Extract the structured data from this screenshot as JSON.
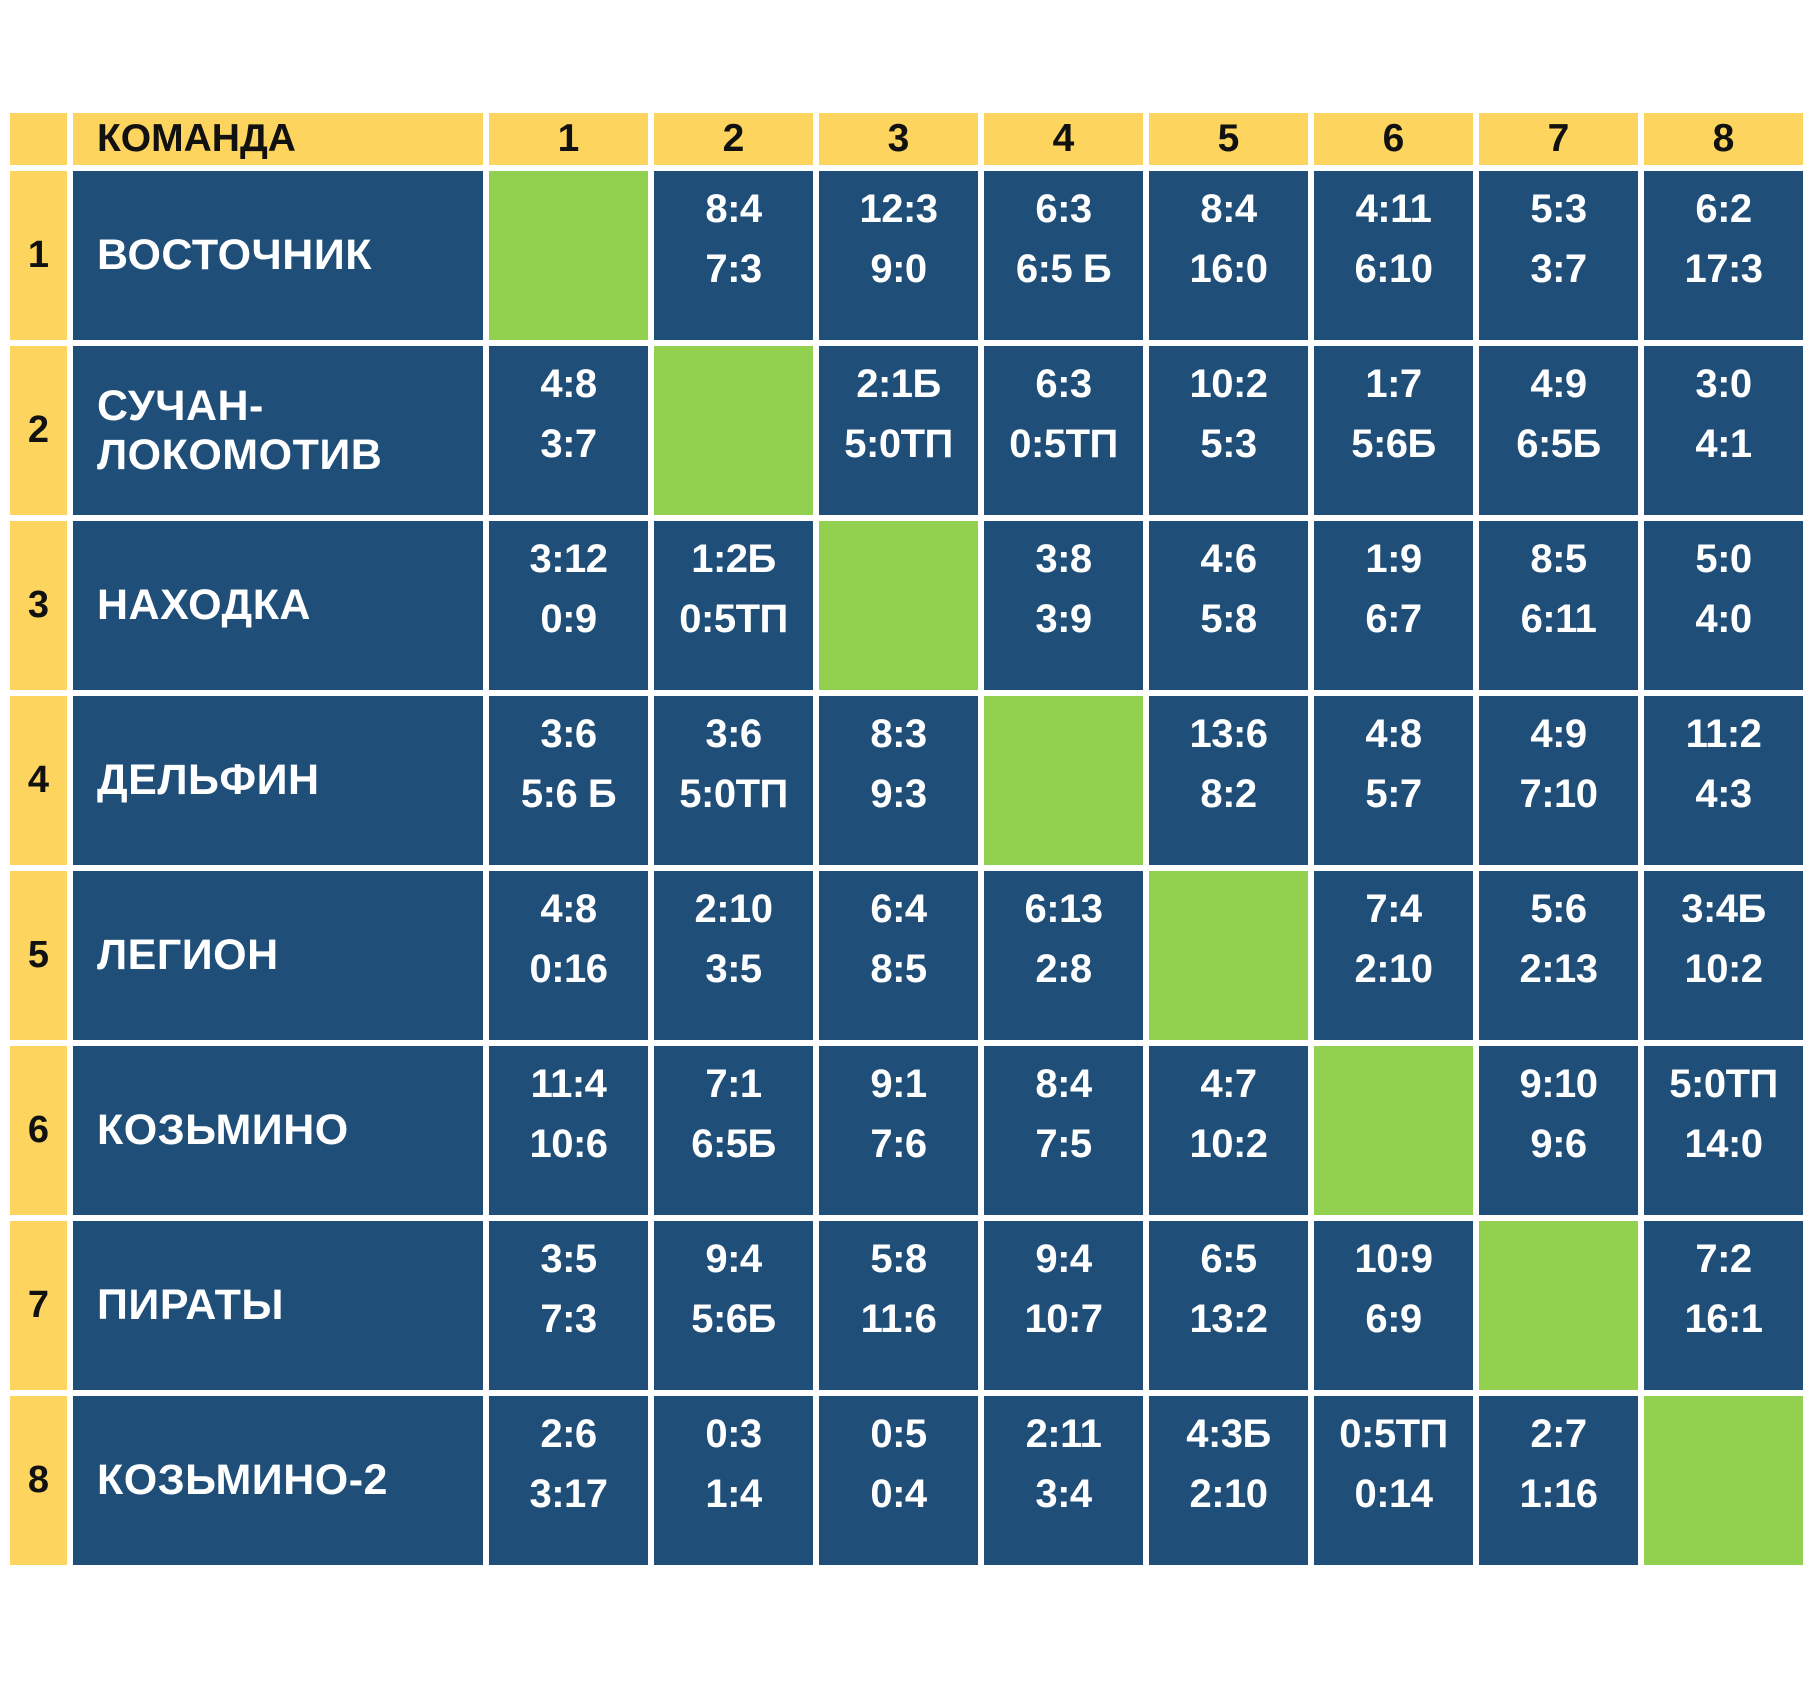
{
  "colors": {
    "header_bg": "#FCD45E",
    "cell_bg": "#1F4E78",
    "diagonal_bg": "#92D050",
    "header_text": "#111111",
    "cell_text": "#FFFFFF",
    "background": "#FFFFFF"
  },
  "chart_data": {
    "type": "table",
    "description": "Round-robin results cross-table, 8 teams; each cell holds two match scores; diagonal self-match cells are green",
    "team_header": "КОМАНДА",
    "col_headers": [
      "1",
      "2",
      "3",
      "4",
      "5",
      "6",
      "7",
      "8"
    ],
    "rows": [
      {
        "num": "1",
        "team": "ВОСТОЧНИК",
        "cells": [
          null,
          [
            "8:4",
            "7:3"
          ],
          [
            "12:3",
            "9:0"
          ],
          [
            "6:3",
            "6:5 Б"
          ],
          [
            "8:4",
            "16:0"
          ],
          [
            "4:11",
            "6:10"
          ],
          [
            "5:3",
            "3:7"
          ],
          [
            "6:2",
            "17:3"
          ]
        ]
      },
      {
        "num": "2",
        "team": "СУЧАН-ЛОКОМОТИВ",
        "cells": [
          [
            "4:8",
            "3:7"
          ],
          null,
          [
            "2:1Б",
            "5:0ТП"
          ],
          [
            "6:3",
            "0:5ТП"
          ],
          [
            "10:2",
            "5:3"
          ],
          [
            "1:7",
            "5:6Б"
          ],
          [
            "4:9",
            "6:5Б"
          ],
          [
            "3:0",
            "4:1"
          ]
        ]
      },
      {
        "num": "3",
        "team": "НАХОДКА",
        "cells": [
          [
            "3:12",
            "0:9"
          ],
          [
            "1:2Б",
            "0:5ТП"
          ],
          null,
          [
            "3:8",
            "3:9"
          ],
          [
            "4:6",
            "5:8"
          ],
          [
            "1:9",
            "6:7"
          ],
          [
            "8:5",
            "6:11"
          ],
          [
            "5:0",
            "4:0"
          ]
        ]
      },
      {
        "num": "4",
        "team": "ДЕЛЬФИН",
        "cells": [
          [
            "3:6",
            "5:6 Б"
          ],
          [
            "3:6",
            "5:0ТП"
          ],
          [
            "8:3",
            "9:3"
          ],
          null,
          [
            "13:6",
            "8:2"
          ],
          [
            "4:8",
            "5:7"
          ],
          [
            "4:9",
            "7:10"
          ],
          [
            "11:2",
            "4:3"
          ]
        ]
      },
      {
        "num": "5",
        "team": "ЛЕГИОН",
        "cells": [
          [
            "4:8",
            "0:16"
          ],
          [
            "2:10",
            "3:5"
          ],
          [
            "6:4",
            "8:5"
          ],
          [
            "6:13",
            "2:8"
          ],
          null,
          [
            "7:4",
            "2:10"
          ],
          [
            "5:6",
            "2:13"
          ],
          [
            "3:4Б",
            "10:2"
          ]
        ]
      },
      {
        "num": "6",
        "team": "КОЗЬМИНО",
        "cells": [
          [
            "11:4",
            "10:6"
          ],
          [
            "7:1",
            "6:5Б"
          ],
          [
            "9:1",
            "7:6"
          ],
          [
            "8:4",
            "7:5"
          ],
          [
            "4:7",
            "10:2"
          ],
          null,
          [
            "9:10",
            "9:6"
          ],
          [
            "5:0ТП",
            "14:0"
          ]
        ]
      },
      {
        "num": "7",
        "team": "ПИРАТЫ",
        "cells": [
          [
            "3:5",
            "7:3"
          ],
          [
            "9:4",
            "5:6Б"
          ],
          [
            "5:8",
            "11:6"
          ],
          [
            "9:4",
            "10:7"
          ],
          [
            "6:5",
            "13:2"
          ],
          [
            "10:9",
            "6:9"
          ],
          null,
          [
            "7:2",
            "16:1"
          ]
        ]
      },
      {
        "num": "8",
        "team": "КОЗЬМИНО-2",
        "cells": [
          [
            "2:6",
            "3:17"
          ],
          [
            "0:3",
            "1:4"
          ],
          [
            "0:5",
            "0:4"
          ],
          [
            "2:11",
            "3:4"
          ],
          [
            "4:3Б",
            "2:10"
          ],
          [
            "0:5ТП",
            "0:14"
          ],
          [
            "2:7",
            "1:16"
          ],
          null
        ]
      }
    ]
  }
}
